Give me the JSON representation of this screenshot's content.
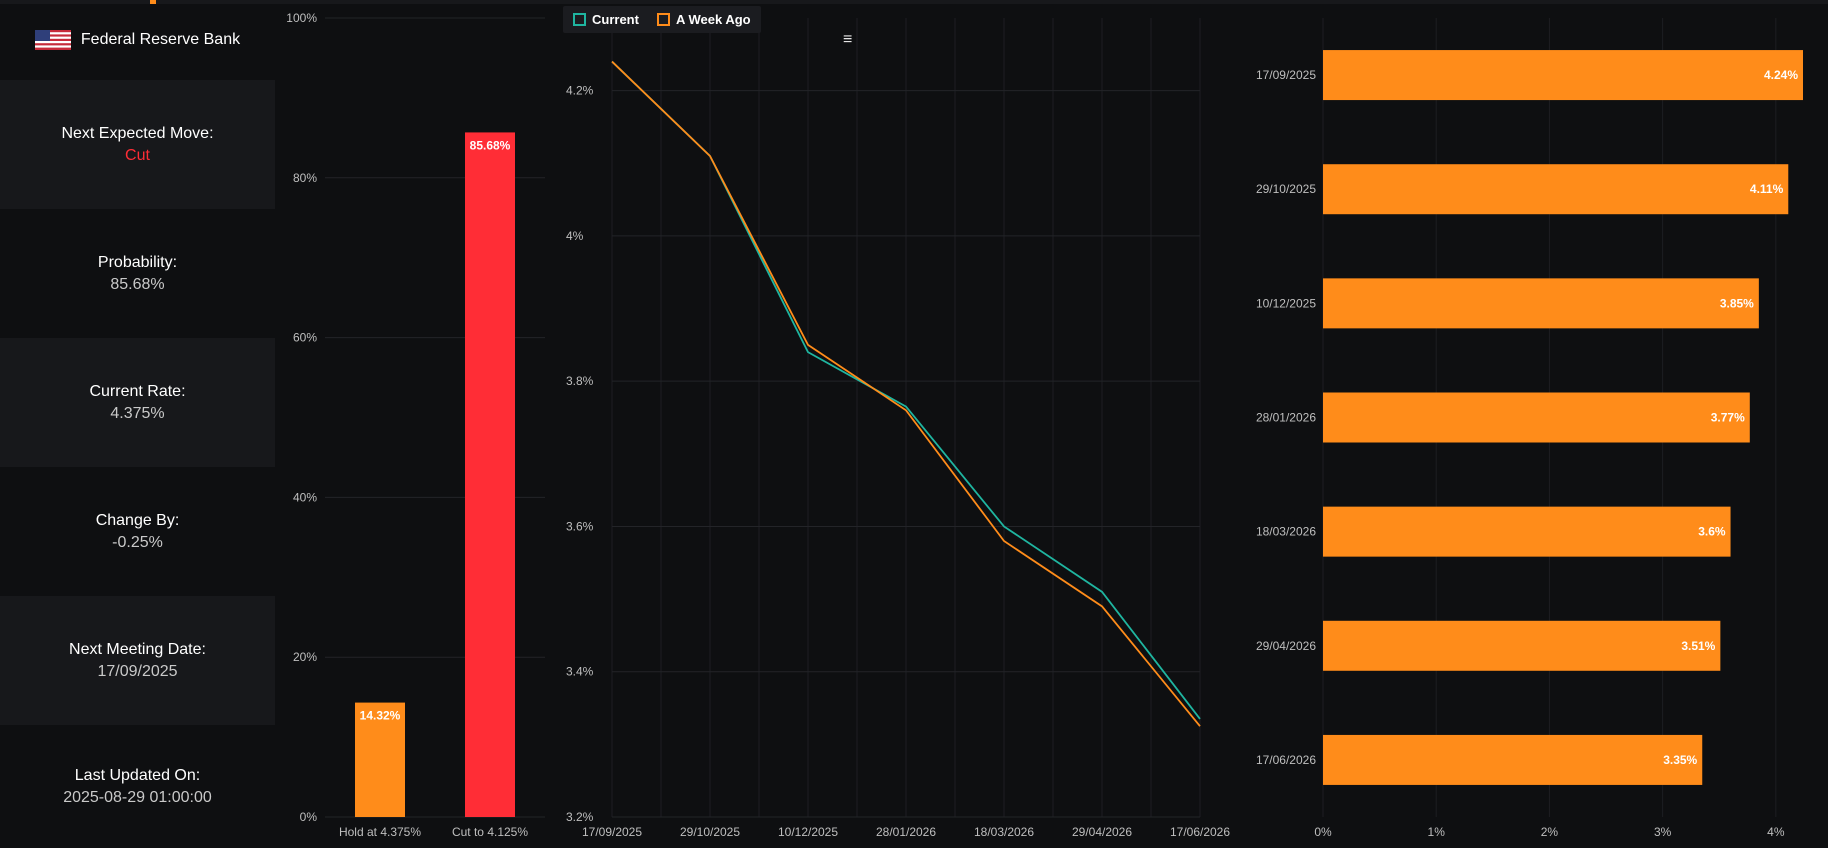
{
  "bank": {
    "name": "Federal Reserve Bank",
    "flag_icon": "us-flag-icon"
  },
  "info_cards": [
    {
      "label": "Next Expected Move:",
      "value": "Cut",
      "value_color": "#ff2d36"
    },
    {
      "label": "Probability:",
      "value": "85.68%"
    },
    {
      "label": "Current Rate:",
      "value": "4.375%"
    },
    {
      "label": "Change By:",
      "value": "-0.25%"
    },
    {
      "label": "Next Meeting Date:",
      "value": "17/09/2025"
    },
    {
      "label": "Last Updated On:",
      "value": "2025-08-29 01:00:00"
    }
  ],
  "legend": {
    "current": "Current",
    "week_ago": "A Week Ago"
  },
  "menu_icon": "hamburger-menu-icon",
  "colors": {
    "orange": "#ff8c1a",
    "red": "#ff2d36",
    "teal": "#1fb5a0",
    "background": "#0e0f11"
  },
  "chart_data": [
    {
      "type": "bar",
      "categories": [
        "Hold at 4.375%",
        "Cut to 4.125%"
      ],
      "values": [
        14.32,
        85.68
      ],
      "value_labels": [
        "14.32%",
        "85.68%"
      ],
      "bar_colors": [
        "#ff8c1a",
        "#ff2d36"
      ],
      "ylim": [
        0,
        100
      ],
      "yticks": [
        0,
        20,
        40,
        60,
        80,
        100
      ],
      "ytick_labels": [
        "0%",
        "20%",
        "40%",
        "60%",
        "80%",
        "100%"
      ],
      "grid": true
    },
    {
      "type": "line",
      "categories": [
        "17/09/2025",
        "29/10/2025",
        "10/12/2025",
        "28/01/2026",
        "18/03/2026",
        "29/04/2026",
        "17/06/2026"
      ],
      "series": [
        {
          "name": "Current",
          "color": "#1fb5a0",
          "values": [
            4.24,
            4.11,
            3.84,
            3.765,
            3.6,
            3.51,
            3.335
          ]
        },
        {
          "name": "A Week Ago",
          "color": "#ff8c1a",
          "values": [
            4.24,
            4.11,
            3.85,
            3.76,
            3.58,
            3.49,
            3.325
          ]
        }
      ],
      "ylim": [
        3.2,
        4.3
      ],
      "yticks": [
        3.2,
        3.4,
        3.6,
        3.8,
        4.0,
        4.2
      ],
      "ytick_labels": [
        "3.2%",
        "3.4%",
        "3.6%",
        "3.8%",
        "4%",
        "4.2%"
      ],
      "grid": true
    },
    {
      "type": "bar",
      "orientation": "horizontal",
      "categories": [
        "17/09/2025",
        "29/10/2025",
        "10/12/2025",
        "28/01/2026",
        "18/03/2026",
        "29/04/2026",
        "17/06/2026"
      ],
      "values": [
        4.24,
        4.11,
        3.85,
        3.77,
        3.6,
        3.51,
        3.35
      ],
      "value_labels": [
        "4.24%",
        "4.11%",
        "3.85%",
        "3.77%",
        "3.6%",
        "3.51%",
        "3.35%"
      ],
      "bar_color": "#ff8c1a",
      "xlim": [
        0,
        4.24
      ],
      "xticks": [
        0,
        1,
        2,
        3,
        4
      ],
      "xtick_labels": [
        "0%",
        "1%",
        "2%",
        "3%",
        "4%"
      ],
      "grid": true
    }
  ]
}
